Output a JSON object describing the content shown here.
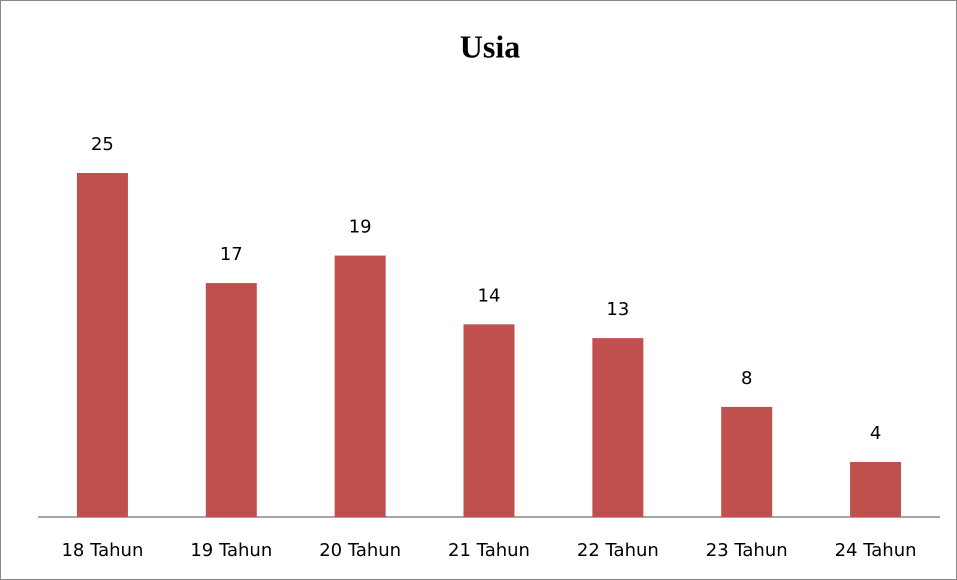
{
  "chart_data": {
    "type": "bar",
    "title": "Usia",
    "categories": [
      "18 Tahun",
      "19 Tahun",
      "20 Tahun",
      "21 Tahun",
      "22 Tahun",
      "23 Tahun",
      "24 Tahun"
    ],
    "values": [
      25,
      17,
      19,
      14,
      13,
      8,
      4
    ],
    "color": "#c0504d"
  }
}
